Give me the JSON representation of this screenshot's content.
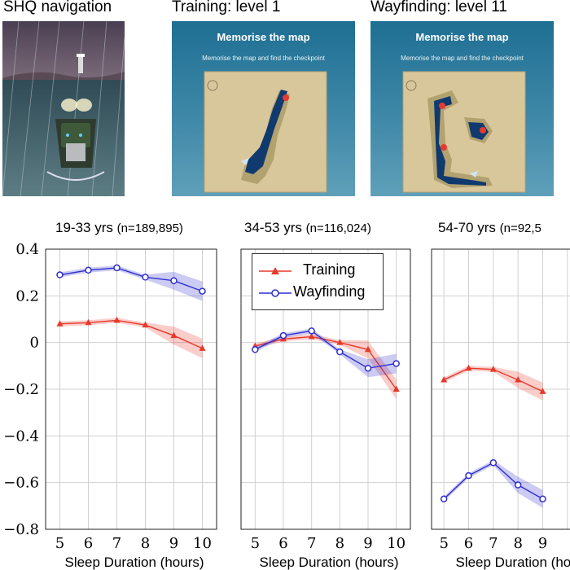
{
  "panels": [
    {
      "title": "SHQ navigation"
    },
    {
      "title": "Training: level 1",
      "heading": "Memorise the map",
      "subtitle": "Memorise the map and find the checkpoint"
    },
    {
      "title": "Wayfinding: level 11",
      "heading": "Memorise the map",
      "subtitle": "Memorise the map and find the checkpoint"
    }
  ],
  "colors": {
    "training": "#e8382a",
    "wayfinding": "#2f2fd0"
  },
  "chart_data": [
    {
      "type": "line",
      "title": "19-33 yrs",
      "subtitle": "(n=189,895)",
      "xlabel": "Sleep Duration (hours)",
      "ylabel": "",
      "x": [
        5,
        6,
        7,
        8,
        9,
        10
      ],
      "xlim": [
        4.5,
        10.5
      ],
      "ylim": [
        -0.8,
        0.4
      ],
      "yticks": [
        "0.4",
        "0.2",
        "0",
        "−0.2",
        "−0.4",
        "−0.6",
        "−0.8"
      ],
      "grid": true,
      "series": [
        {
          "name": "Training",
          "values": [
            0.08,
            0.085,
            0.095,
            0.075,
            0.03,
            -0.025
          ]
        },
        {
          "name": "Wayfinding",
          "values": [
            0.29,
            0.31,
            0.32,
            0.28,
            0.265,
            0.22
          ]
        }
      ]
    },
    {
      "type": "line",
      "title": "34-53 yrs",
      "subtitle": "(n=116,024)",
      "xlabel": "Sleep Duration (hours)",
      "ylabel": "",
      "x": [
        5,
        6,
        7,
        8,
        9,
        10
      ],
      "xlim": [
        4.5,
        10.5
      ],
      "ylim": [
        -0.8,
        0.4
      ],
      "grid": true,
      "legend": "top-center",
      "series": [
        {
          "name": "Training",
          "values": [
            -0.015,
            0.015,
            0.025,
            0.0,
            -0.03,
            -0.2
          ]
        },
        {
          "name": "Wayfinding",
          "values": [
            -0.03,
            0.03,
            0.05,
            -0.04,
            -0.11,
            -0.09
          ]
        }
      ]
    },
    {
      "type": "line",
      "title": "54-70 yrs",
      "subtitle": "(n=92,5",
      "xlabel": "Sleep Duration (hours)",
      "ylabel": "",
      "x": [
        5,
        6,
        7,
        8,
        9
      ],
      "xlim": [
        4.5,
        10.5
      ],
      "ylim": [
        -0.8,
        0.4
      ],
      "grid": true,
      "series": [
        {
          "name": "Training",
          "values": [
            -0.16,
            -0.11,
            -0.115,
            -0.16,
            -0.21
          ]
        },
        {
          "name": "Wayfinding",
          "values": [
            -0.67,
            -0.57,
            -0.515,
            -0.61,
            -0.67
          ]
        }
      ]
    }
  ]
}
